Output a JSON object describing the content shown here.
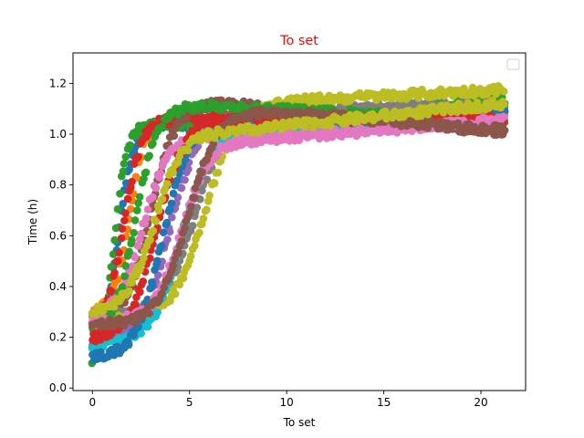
{
  "chart_data": {
    "type": "scatter",
    "title": "To set",
    "title_color": "#ff0000",
    "xlabel": "To set",
    "ylabel": "Time (h)",
    "xlim": [
      -1.0,
      22.3
    ],
    "ylim": [
      -0.01,
      1.32
    ],
    "xticks": [
      0,
      5,
      10,
      15,
      20
    ],
    "yticks": [
      0.0,
      0.2,
      0.4,
      0.6,
      0.8,
      1.0,
      1.2
    ],
    "grid": false,
    "legend": {
      "placement": "top-right",
      "entries": []
    },
    "marker": "circle",
    "x_max": 21.2,
    "series": [
      {
        "color": "#1f77b4",
        "start": 0.14,
        "midpoint": 1.3,
        "rate": 2.6,
        "plateau": 1.03,
        "drift": 0.004
      },
      {
        "color": "#ff7f0e",
        "start": 0.3,
        "midpoint": 1.9,
        "rate": 2.5,
        "plateau": 1.05,
        "drift": 0.002
      },
      {
        "color": "#2ca02c",
        "start": 0.08,
        "midpoint": 1.1,
        "rate": 3.0,
        "plateau": 1.04,
        "drift": 0.006
      },
      {
        "color": "#d62728",
        "start": 0.22,
        "midpoint": 1.6,
        "rate": 2.2,
        "plateau": 1.06,
        "drift": 0.001
      },
      {
        "color": "#9467bd",
        "start": 0.18,
        "midpoint": 4.0,
        "rate": 1.3,
        "plateau": 1.08,
        "drift": 0.0
      },
      {
        "color": "#8c564b",
        "start": 0.26,
        "midpoint": 3.0,
        "rate": 1.6,
        "plateau": 1.12,
        "drift": -0.008
      },
      {
        "color": "#e377c2",
        "start": 0.27,
        "midpoint": 2.6,
        "rate": 1.5,
        "plateau": 1.0,
        "drift": 0.004
      },
      {
        "color": "#7f7f7f",
        "start": 0.28,
        "midpoint": 5.3,
        "rate": 1.2,
        "plateau": 1.1,
        "drift": 0.001
      },
      {
        "color": "#bcbd22",
        "start": 0.27,
        "midpoint": 5.8,
        "rate": 1.2,
        "plateau": 1.13,
        "drift": 0.004
      },
      {
        "color": "#17becf",
        "start": 0.17,
        "midpoint": 4.6,
        "rate": 1.3,
        "plateau": 1.03,
        "drift": 0.003
      },
      {
        "color": "#1f77b4",
        "start": 0.12,
        "midpoint": 3.6,
        "rate": 1.5,
        "plateau": 1.05,
        "drift": 0.002
      },
      {
        "color": "#2ca02c",
        "start": 0.2,
        "midpoint": 2.2,
        "rate": 1.8,
        "plateau": 1.11,
        "drift": -0.004
      },
      {
        "color": "#d62728",
        "start": 0.19,
        "midpoint": 3.3,
        "rate": 1.4,
        "plateau": 1.06,
        "drift": 0.0
      },
      {
        "color": "#e377c2",
        "start": 0.26,
        "midpoint": 4.6,
        "rate": 1.4,
        "plateau": 0.98,
        "drift": 0.006
      },
      {
        "color": "#8c564b",
        "start": 0.25,
        "midpoint": 4.9,
        "rate": 1.3,
        "plateau": 1.09,
        "drift": -0.006
      },
      {
        "color": "#bcbd22",
        "start": 0.3,
        "midpoint": 3.2,
        "rate": 1.4,
        "plateau": 1.01,
        "drift": 0.008
      }
    ]
  }
}
